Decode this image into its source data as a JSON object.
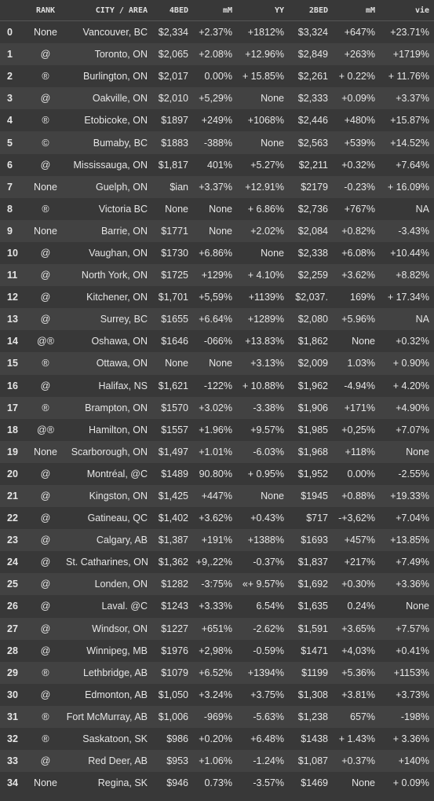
{
  "table": {
    "columns": [
      "",
      "RANK",
      "CITY / AREA",
      "4BED",
      "mM",
      "YY",
      "2BED",
      "mM",
      "vie"
    ],
    "rows": [
      [
        "0",
        "None",
        "Vancouver, BC",
        "$2,334",
        "+2.37%",
        "+1812%",
        "$3,324",
        "+647%",
        "+23.71%"
      ],
      [
        "1",
        "@",
        "Toronto, ON",
        "$2,065",
        "+2.08%",
        "+12.96%",
        "$2,849",
        "+263%",
        "+1719%"
      ],
      [
        "2",
        "®",
        "Burlington, ON",
        "$2,017",
        "0.00%",
        "+ 15.85%",
        "$2,261",
        "+ 0.22%",
        "+ 11.76%"
      ],
      [
        "3",
        "@",
        "Oakville, ON",
        "$2,010",
        "+5,29%",
        "None",
        "$2,333",
        "+0.09%",
        "+3.37%"
      ],
      [
        "4",
        "®",
        "Etobicoke, ON",
        "$1897",
        "+249%",
        "+1068%",
        "$2,446",
        "+480%",
        "+15.87%"
      ],
      [
        "5",
        "©",
        "Bumaby, BC",
        "$1883",
        "-388%",
        "None",
        "$2,563",
        "+539%",
        "+14.52%"
      ],
      [
        "6",
        "@",
        "Mississauga, ON",
        "$1,817",
        "401%",
        "+5.27%",
        "$2,211",
        "+0.32%",
        "+7.64%"
      ],
      [
        "7",
        "None",
        "Guelph, ON",
        "$ian",
        "+3.37%",
        "+12.91%",
        "$2179",
        "-0.23%",
        "+ 16.09%"
      ],
      [
        "8",
        "®",
        "Victoria BC",
        "None",
        "None",
        "+ 6.86%",
        "$2,736",
        "+767%",
        "NA"
      ],
      [
        "9",
        "None",
        "Barrie, ON",
        "$1771",
        "None",
        "+2.02%",
        "$2,084",
        "+0.82%",
        "-3.43%"
      ],
      [
        "10",
        "@",
        "Vaughan, ON",
        "$1730",
        "+6.86%",
        "None",
        "$2,338",
        "+6.08%",
        "+10.44%"
      ],
      [
        "11",
        "@",
        "North York, ON",
        "$1725",
        "+129%",
        "+ 4.10%",
        "$2,259",
        "+3.62%",
        "+8.82%"
      ],
      [
        "12",
        "@",
        "Kitchener, ON",
        "$1,701",
        "+5,59%",
        "+1139%",
        "$2,037.",
        "169%",
        "+ 17.34%"
      ],
      [
        "13",
        "@",
        "Surrey, BC",
        "$1655",
        "+6.64%",
        "+1289%",
        "$2,080",
        "+5.96%",
        "NA"
      ],
      [
        "14",
        "@®",
        "Oshawa, ON",
        "$1646",
        "-066%",
        "+13.83%",
        "$1,862",
        "None",
        "+0.32%"
      ],
      [
        "15",
        "®",
        "Ottawa, ON",
        "None",
        "None",
        "+3.13%",
        "$2,009",
        "1.03%",
        "+ 0.90%"
      ],
      [
        "16",
        "@",
        "Halifax, NS",
        "$1,621",
        "-122%",
        "+ 10.88%",
        "$1,962",
        "-4.94%",
        "+ 4.20%"
      ],
      [
        "17",
        "®",
        "Brampton, ON",
        "$1570",
        "+3.02%",
        "-3.38%",
        "$1,906",
        "+171%",
        "+4.90%"
      ],
      [
        "18",
        "@®",
        "Hamilton, ON",
        "$1557",
        "+1.96%",
        "+9.57%",
        "$1,985",
        "+0,25%",
        "+7.07%"
      ],
      [
        "19",
        "None",
        "Scarborough, ON",
        "$1,497",
        "+1.01%",
        "-6.03%",
        "$1,968",
        "+118%",
        "None"
      ],
      [
        "20",
        "@",
        "Montréal, @C",
        "$1489",
        "90.80%",
        "+ 0.95%",
        "$1,952",
        "0.00%",
        "-2.55%"
      ],
      [
        "21",
        "@",
        "Kingston, ON",
        "$1,425",
        "+447%",
        "None",
        "$1945",
        "+0.88%",
        "+19.33%"
      ],
      [
        "22",
        "@",
        "Gatineau, QC",
        "$1,402",
        "+3.62%",
        "+0.43%",
        "$717",
        "-+3,62%",
        "+7.04%"
      ],
      [
        "23",
        "@",
        "Calgary, AB",
        "$1,387",
        "+191%",
        "+1388%",
        "$1693",
        "+457%",
        "+13.85%"
      ],
      [
        "24",
        "@",
        "St. Catharines, ON",
        "$1,362",
        "+9,.22%",
        "-0.37%",
        "$1,837",
        "+217%",
        "+7.49%"
      ],
      [
        "25",
        "@",
        "Londen, ON",
        "$1282",
        "-3:75%",
        "«+ 9.57%",
        "$1,692",
        "+0.30%",
        "+3.36%"
      ],
      [
        "26",
        "@",
        "Laval. @C",
        "$1243",
        "+3.33%",
        "6.54%",
        "$1,635",
        "0.24%",
        "None"
      ],
      [
        "27",
        "@",
        "Windsor, ON",
        "$1227",
        "+651%",
        "-2.62%",
        "$1,591",
        "+3.65%",
        "+7.57%"
      ],
      [
        "28",
        "@",
        "Winnipeg, MB",
        "$1976",
        "+2,98%",
        "-0.59%",
        "$1471",
        "+4,03%",
        "+0.41%"
      ],
      [
        "29",
        "®",
        "Lethbridge, AB",
        "$1079",
        "+6.52%",
        "+1394%",
        "$1199",
        "+5.36%",
        "+1153%"
      ],
      [
        "30",
        "@",
        "Edmonton, AB",
        "$1,050",
        "+3.24%",
        "+3.75%",
        "$1,308",
        "+3.81%",
        "+3.73%"
      ],
      [
        "31",
        "®",
        "Fort McMurray, AB",
        "$1,006",
        "-969%",
        "-5.63%",
        "$1,238",
        "657%",
        "-198%"
      ],
      [
        "32",
        "®",
        "Saskatoon, SK",
        "$986",
        "+0.20%",
        "+6.48%",
        "$1438",
        "+ 1.43%",
        "+ 3.36%"
      ],
      [
        "33",
        "@",
        "Red Deer, AB",
        "$953",
        "+1.06%",
        "-1.24%",
        "$1,087",
        "+0.37%",
        "+140%"
      ],
      [
        "34",
        "None",
        "Regina, SK",
        "$946",
        "0.73%",
        "-3.57%",
        "$1469",
        "None",
        "+ 0.09%"
      ]
    ]
  }
}
